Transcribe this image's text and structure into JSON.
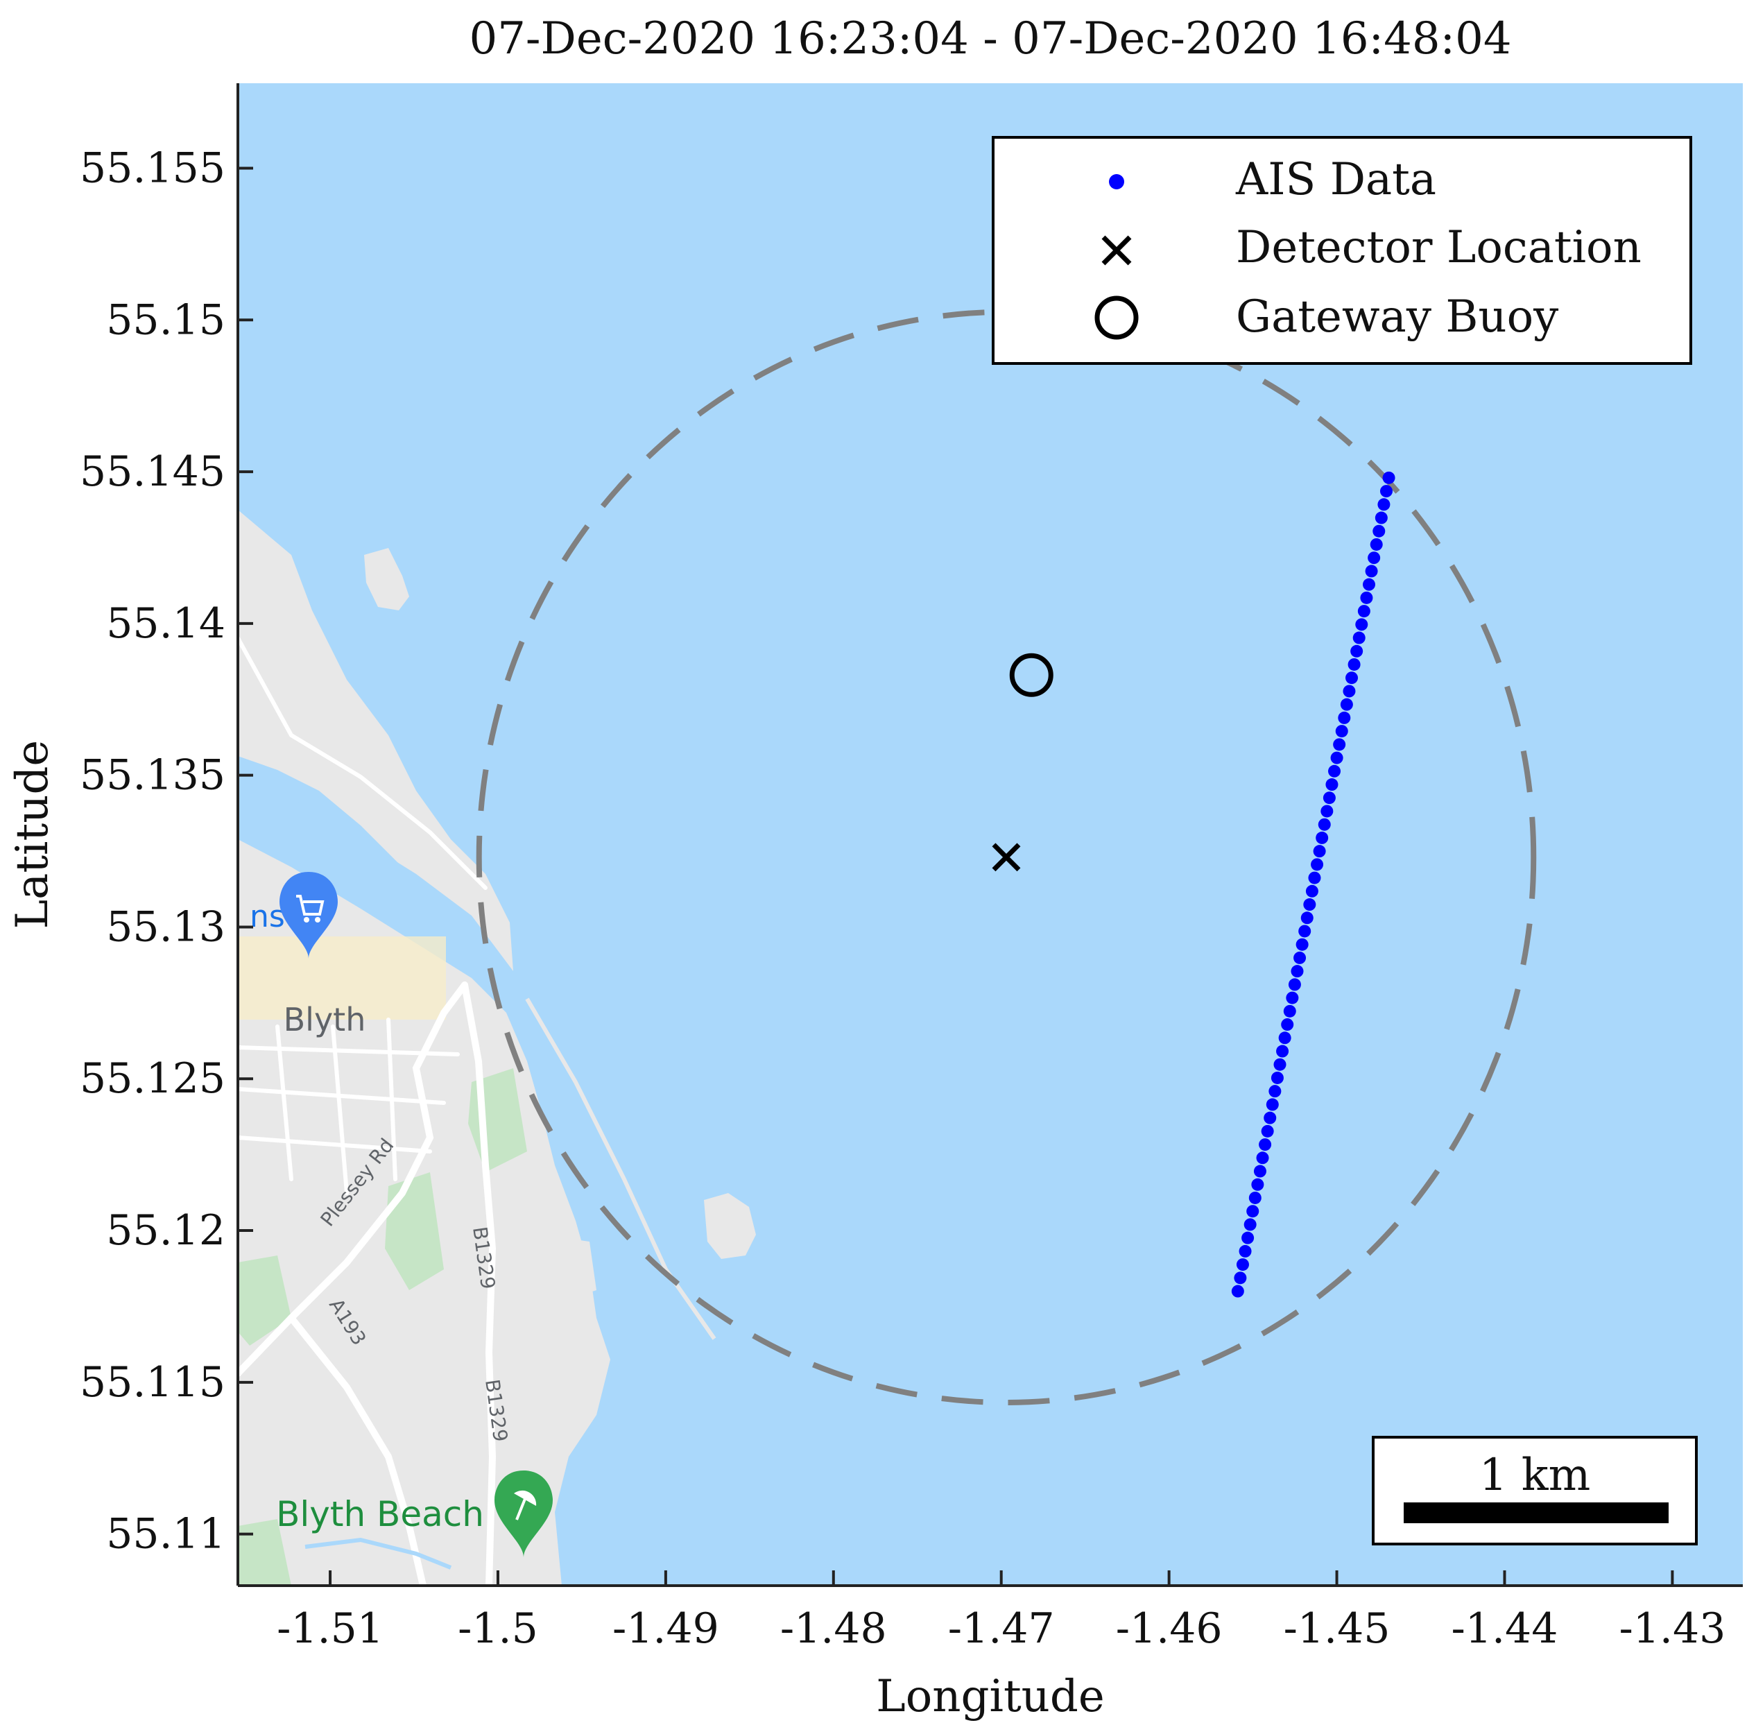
{
  "chart_data": {
    "type": "scatter",
    "title": "07-Dec-2020 16:23:04 - 07-Dec-2020 16:48:04",
    "xlabel": "Longitude",
    "ylabel": "Latitude",
    "xlim": [
      -1.5155,
      -1.4258
    ],
    "ylim": [
      55.1083,
      55.1578
    ],
    "xticks": [
      -1.51,
      -1.5,
      -1.49,
      -1.48,
      -1.47,
      -1.46,
      -1.45,
      -1.44,
      -1.43
    ],
    "xtick_labels": [
      "-1.51",
      "-1.5",
      "-1.49",
      "-1.48",
      "-1.47",
      "-1.46",
      "-1.45",
      "-1.44",
      "-1.43"
    ],
    "yticks": [
      55.11,
      55.115,
      55.12,
      55.125,
      55.13,
      55.135,
      55.14,
      55.145,
      55.15,
      55.155
    ],
    "ytick_labels": [
      "55.11",
      "55.115",
      "55.12",
      "55.125",
      "55.13",
      "55.135",
      "55.14",
      "55.145",
      "55.15",
      "55.155"
    ],
    "grid": false,
    "legend_position": "top-right",
    "series": [
      {
        "name": "AIS Data",
        "color": "#0000ff",
        "marker": "dot",
        "path_start": [
          -1.4559,
          55.118
        ],
        "path_end": [
          -1.4469,
          55.1448
        ],
        "count": 62
      },
      {
        "name": "Detector Location",
        "color": "#000000",
        "marker": "x",
        "points": [
          [
            -1.4697,
            55.1323
          ]
        ]
      },
      {
        "name": "Gateway Buoy",
        "color": "#000000",
        "marker": "circle",
        "points": [
          [
            -1.4682,
            55.1383
          ]
        ]
      }
    ],
    "range_circle": {
      "center": [
        -1.4697,
        55.1323
      ],
      "radius_km": 2,
      "color": "#808080",
      "style": "dashed"
    },
    "scale_bar": {
      "label": "1 km",
      "length_km": 1
    }
  },
  "map": {
    "place_labels": [
      "Blyth",
      "Blyth Beach"
    ],
    "partial_label": "ns",
    "road_labels": [
      "Plessey Rd",
      "B1329",
      "A193",
      "B1329"
    ],
    "sea_color": "#aad8fb",
    "land_color": "#e8e8e8",
    "park_color": "#c6e5c6"
  }
}
